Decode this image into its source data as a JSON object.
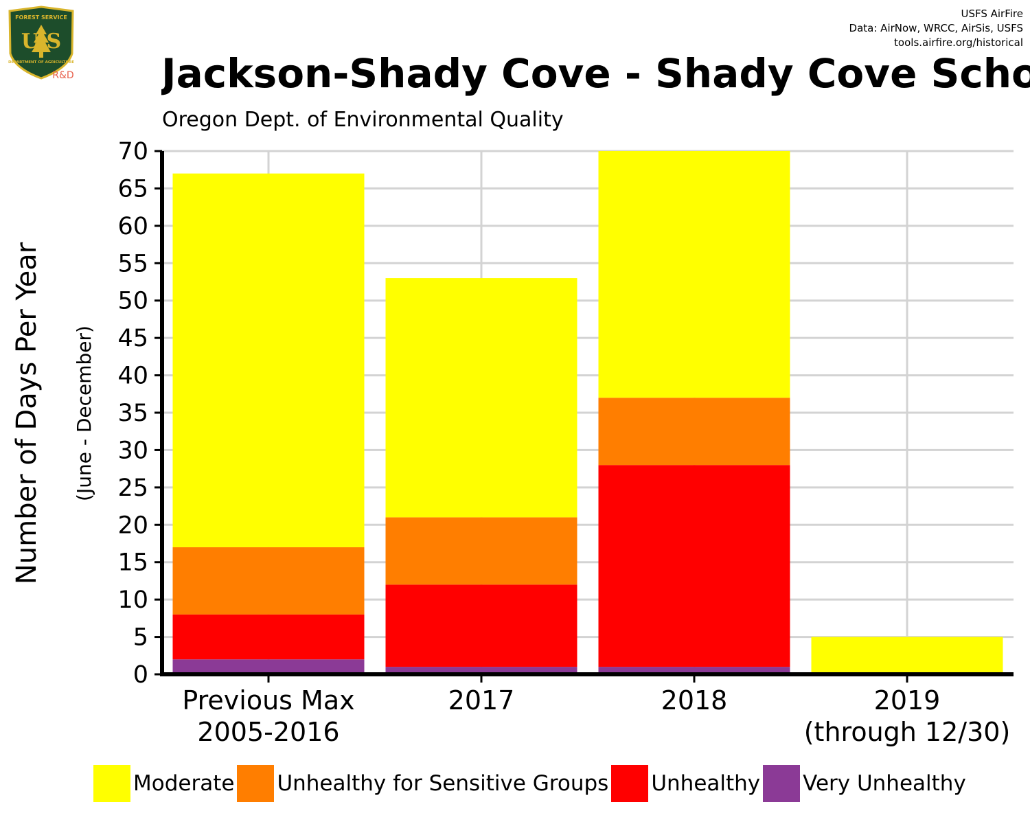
{
  "logo": {
    "icon": "usfs-shield-logo",
    "top_text": "FOREST SERVICE",
    "letters": "U S",
    "bottom_text": "DEPARTMENT OF AGRICULTURE",
    "tag": "R&D",
    "colors": {
      "shield": "#1d4d2b",
      "gold": "#d9b52c",
      "tag": "#e8604c"
    }
  },
  "credits": [
    "USFS AirFire",
    "Data: AirNow, WRCC, AirSis, USFS",
    "tools.airfire.org/historical"
  ],
  "header": {
    "title": "Jackson-Shady Cove - Shady Cove Scho",
    "subtitle": "Oregon Dept. of Environmental Quality"
  },
  "chart_data": {
    "type": "bar",
    "stacked": true,
    "categories": [
      [
        "Previous Max",
        "2005-2016"
      ],
      [
        "2017"
      ],
      [
        "2018"
      ],
      [
        "2019",
        "(through 12/30)"
      ]
    ],
    "series": [
      {
        "name": "Very Unhealthy",
        "color": "#8b3a96",
        "values": [
          2,
          1,
          1,
          0
        ]
      },
      {
        "name": "Unhealthy",
        "color": "#ff0000",
        "values": [
          6,
          11,
          27,
          0
        ]
      },
      {
        "name": "Unhealthy for Sensitive Groups",
        "color": "#ff7e00",
        "values": [
          9,
          9,
          9,
          0
        ]
      },
      {
        "name": "Moderate",
        "color": "#ffff00",
        "values": [
          50,
          32,
          33,
          5
        ]
      }
    ],
    "ylabel": "Number of Days Per Year",
    "ylabel_sub": "(June - December)",
    "ylim": [
      0,
      70
    ],
    "yticks": [
      0,
      5,
      10,
      15,
      20,
      25,
      30,
      35,
      40,
      45,
      50,
      55,
      60,
      65,
      70
    ],
    "grid": true,
    "grid_color": "#d3d3d3",
    "legend_position": "bottom"
  },
  "legend": [
    {
      "label": "Moderate",
      "color": "#ffff00"
    },
    {
      "label": "Unhealthy for Sensitive Groups",
      "color": "#ff7e00"
    },
    {
      "label": "Unhealthy",
      "color": "#ff0000"
    },
    {
      "label": "Very Unhealthy",
      "color": "#8b3a96"
    }
  ]
}
